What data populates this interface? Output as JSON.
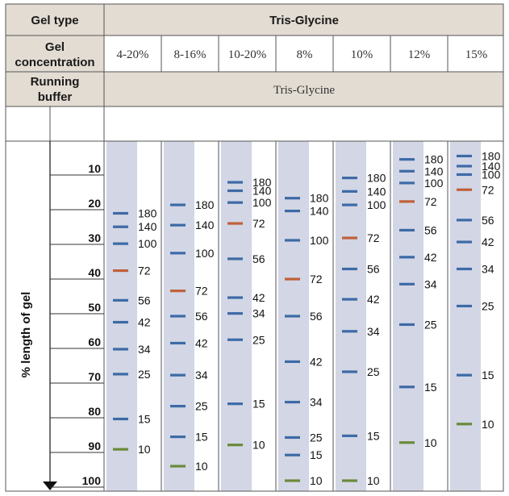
{
  "header": {
    "gel_type_label": "Gel type",
    "gel_type_value": "Tris-Glycine",
    "gel_conc_label_line1": "Gel",
    "gel_conc_label_line2": "concentration",
    "running_buffer_label_line1": "Running",
    "running_buffer_label_line2": "buffer",
    "running_buffer_value": "Tris-Glycine"
  },
  "concentrations": [
    "4-20%",
    "8-16%",
    "10-20%",
    "8%",
    "10%",
    "12%",
    "15%"
  ],
  "axis": {
    "label": "% length of gel",
    "ticks": [
      10,
      20,
      30,
      40,
      50,
      60,
      70,
      80,
      90,
      100
    ]
  },
  "colors": {
    "header_bg": "#e3dcd3",
    "lane_bg": "#d2d6e5",
    "band_blue": "#3d6aa6",
    "band_orange": "#c0603a",
    "band_green": "#6a8a3a",
    "border": "#555555"
  },
  "gels": [
    {
      "bands": [
        {
          "label": "180",
          "pos": 19.5,
          "color": "blue"
        },
        {
          "label": "140",
          "pos": 23.5,
          "color": "blue"
        },
        {
          "label": "100",
          "pos": 28.5,
          "color": "blue"
        },
        {
          "label": "72",
          "pos": 36.5,
          "color": "orange"
        },
        {
          "label": "56",
          "pos": 45.3,
          "color": "blue"
        },
        {
          "label": "42",
          "pos": 51.8,
          "color": "blue"
        },
        {
          "label": "34",
          "pos": 59.8,
          "color": "blue"
        },
        {
          "label": "25",
          "pos": 67.2,
          "color": "blue"
        },
        {
          "label": "15",
          "pos": 80.5,
          "color": "blue"
        },
        {
          "label": "10",
          "pos": 89.5,
          "color": "green"
        }
      ]
    },
    {
      "bands": [
        {
          "label": "180",
          "pos": 17.0,
          "color": "blue"
        },
        {
          "label": "140",
          "pos": 23.0,
          "color": "blue"
        },
        {
          "label": "100",
          "pos": 31.3,
          "color": "blue"
        },
        {
          "label": "72",
          "pos": 42.5,
          "color": "orange"
        },
        {
          "label": "56",
          "pos": 50.0,
          "color": "blue"
        },
        {
          "label": "42",
          "pos": 58.0,
          "color": "blue"
        },
        {
          "label": "34",
          "pos": 67.5,
          "color": "blue"
        },
        {
          "label": "25",
          "pos": 76.7,
          "color": "blue"
        },
        {
          "label": "15",
          "pos": 85.8,
          "color": "blue"
        },
        {
          "label": "10",
          "pos": 94.5,
          "color": "green"
        }
      ]
    },
    {
      "bands": [
        {
          "label": "180",
          "pos": 10.3,
          "color": "blue"
        },
        {
          "label": "140",
          "pos": 12.8,
          "color": "blue"
        },
        {
          "label": "100",
          "pos": 16.3,
          "color": "blue"
        },
        {
          "label": "72",
          "pos": 22.5,
          "color": "orange"
        },
        {
          "label": "56",
          "pos": 33.0,
          "color": "blue"
        },
        {
          "label": "42",
          "pos": 44.5,
          "color": "blue"
        },
        {
          "label": "34",
          "pos": 49.2,
          "color": "blue"
        },
        {
          "label": "25",
          "pos": 57.0,
          "color": "blue"
        },
        {
          "label": "15",
          "pos": 76.0,
          "color": "blue"
        },
        {
          "label": "10",
          "pos": 88.2,
          "color": "green"
        }
      ]
    },
    {
      "bands": [
        {
          "label": "180",
          "pos": 15.0,
          "color": "blue"
        },
        {
          "label": "140",
          "pos": 18.8,
          "color": "blue"
        },
        {
          "label": "100",
          "pos": 27.5,
          "color": "blue"
        },
        {
          "label": "72",
          "pos": 39.0,
          "color": "orange"
        },
        {
          "label": "56",
          "pos": 50.0,
          "color": "blue"
        },
        {
          "label": "42",
          "pos": 63.5,
          "color": "blue"
        },
        {
          "label": "34",
          "pos": 75.5,
          "color": "blue"
        },
        {
          "label": "25",
          "pos": 86.0,
          "color": "blue"
        },
        {
          "label": "15",
          "pos": 91.2,
          "color": "blue"
        },
        {
          "label": "10",
          "pos": 98.8,
          "color": "green"
        }
      ]
    },
    {
      "bands": [
        {
          "label": "180",
          "pos": 9.0,
          "color": "blue"
        },
        {
          "label": "140",
          "pos": 13.0,
          "color": "blue"
        },
        {
          "label": "100",
          "pos": 17.0,
          "color": "blue"
        },
        {
          "label": "72",
          "pos": 26.8,
          "color": "orange"
        },
        {
          "label": "56",
          "pos": 36.0,
          "color": "blue"
        },
        {
          "label": "42",
          "pos": 45.0,
          "color": "blue"
        },
        {
          "label": "34",
          "pos": 54.5,
          "color": "blue"
        },
        {
          "label": "25",
          "pos": 66.5,
          "color": "blue"
        },
        {
          "label": "15",
          "pos": 85.5,
          "color": "blue"
        },
        {
          "label": "10",
          "pos": 98.8,
          "color": "green"
        }
      ]
    },
    {
      "bands": [
        {
          "label": "180",
          "pos": 3.5,
          "color": "blue"
        },
        {
          "label": "140",
          "pos": 7.0,
          "color": "blue"
        },
        {
          "label": "100",
          "pos": 10.5,
          "color": "blue"
        },
        {
          "label": "72",
          "pos": 16.0,
          "color": "orange"
        },
        {
          "label": "56",
          "pos": 24.5,
          "color": "blue"
        },
        {
          "label": "42",
          "pos": 32.5,
          "color": "blue"
        },
        {
          "label": "34",
          "pos": 40.5,
          "color": "blue"
        },
        {
          "label": "25",
          "pos": 52.5,
          "color": "blue"
        },
        {
          "label": "15",
          "pos": 71.0,
          "color": "blue"
        },
        {
          "label": "10",
          "pos": 87.5,
          "color": "green"
        }
      ]
    },
    {
      "bands": [
        {
          "label": "180",
          "pos": 2.5,
          "color": "blue"
        },
        {
          "label": "140",
          "pos": 5.5,
          "color": "blue"
        },
        {
          "label": "100",
          "pos": 8.0,
          "color": "blue"
        },
        {
          "label": "72",
          "pos": 12.5,
          "color": "orange"
        },
        {
          "label": "56",
          "pos": 21.5,
          "color": "blue"
        },
        {
          "label": "42",
          "pos": 28.0,
          "color": "blue"
        },
        {
          "label": "34",
          "pos": 36.0,
          "color": "blue"
        },
        {
          "label": "25",
          "pos": 47.0,
          "color": "blue"
        },
        {
          "label": "15",
          "pos": 67.5,
          "color": "blue"
        },
        {
          "label": "10",
          "pos": 82.0,
          "color": "green"
        }
      ]
    }
  ]
}
